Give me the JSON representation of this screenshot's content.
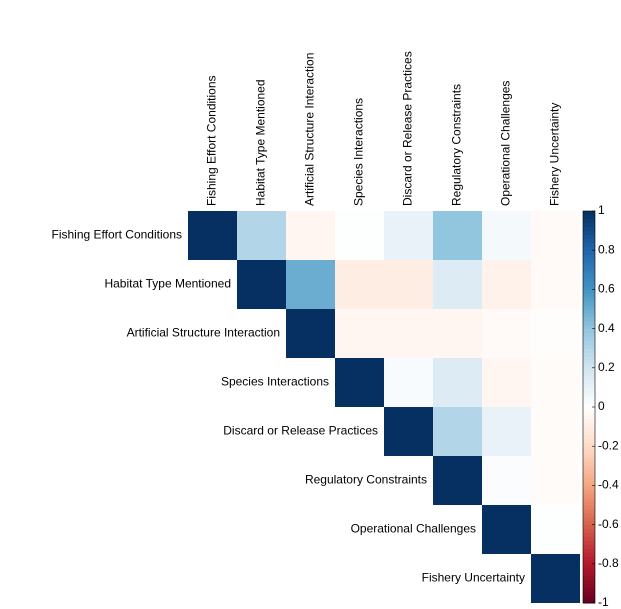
{
  "chart_data": {
    "type": "heatmap",
    "categories": [
      "Fishing Effort Conditions",
      "Habitat Type Mentioned",
      "Artificial Structure Interaction",
      "Species Interactions",
      "Discard or Release Practices",
      "Regulatory Constraints",
      "Operational Challenges",
      "Fishery Uncertainty"
    ],
    "values": [
      [
        1,
        0.3,
        -0.05,
        0.01,
        0.1,
        0.4,
        0.05,
        -0.03
      ],
      [
        null,
        1,
        0.5,
        -0.1,
        -0.1,
        0.15,
        -0.07,
        -0.03
      ],
      [
        null,
        null,
        1,
        -0.05,
        -0.05,
        -0.05,
        -0.03,
        -0.01
      ],
      [
        null,
        null,
        null,
        1,
        0.03,
        0.15,
        -0.05,
        -0.02
      ],
      [
        null,
        null,
        null,
        null,
        1,
        0.3,
        0.1,
        -0.02
      ],
      [
        null,
        null,
        null,
        null,
        null,
        1,
        0.02,
        -0.02
      ],
      [
        null,
        null,
        null,
        null,
        null,
        null,
        1,
        0.01
      ],
      [
        null,
        null,
        null,
        null,
        null,
        null,
        null,
        1
      ]
    ],
    "zlim": [
      -1,
      1
    ],
    "zticks": [
      1,
      0.8,
      0.6,
      0.4,
      0.2,
      0,
      -0.2,
      -0.4,
      -0.6,
      -0.8,
      -1
    ],
    "colorscale": [
      "#67001F",
      "#B2182B",
      "#D6604D",
      "#F4A582",
      "#FDDBC7",
      "#FFFFFF",
      "#D1E5F0",
      "#92C5DE",
      "#4393C3",
      "#2166AC",
      "#053061"
    ]
  }
}
